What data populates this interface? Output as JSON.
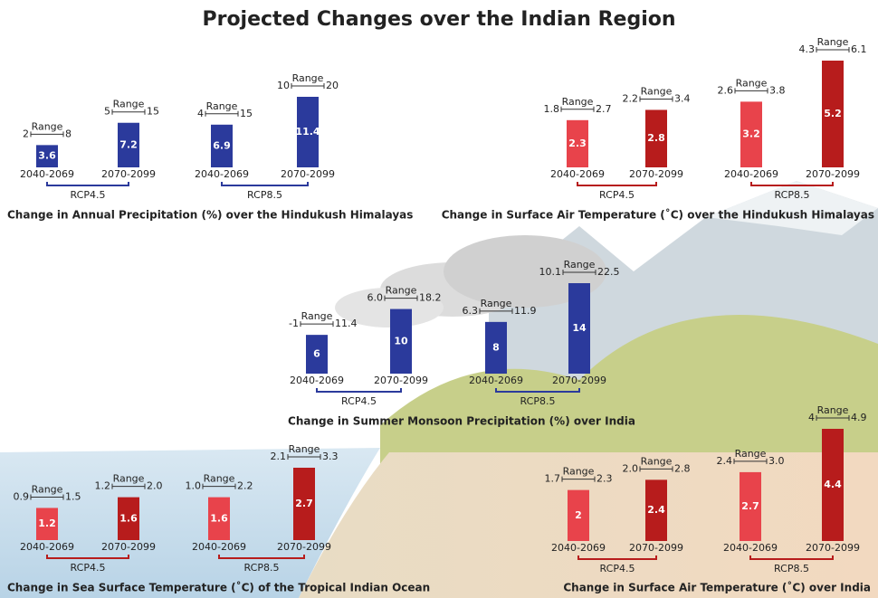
{
  "title": "Projected Changes over the Indian Region",
  "chart_data": [
    {
      "type": "bar",
      "title": "Change in Annual Precipitation (%) over the Hindukush Himalayas",
      "range_label": "Range",
      "colors": [
        "#2b3a9c",
        "#2b3a9c"
      ],
      "scenarios": [
        {
          "name": "RCP4.5",
          "bars": [
            {
              "period": "2040-2069",
              "value": 3.6,
              "low": 2,
              "high": 8
            },
            {
              "period": "2070-2099",
              "value": 7.2,
              "low": 5,
              "high": 15
            }
          ]
        },
        {
          "name": "RCP8.5",
          "bars": [
            {
              "period": "2040-2069",
              "value": 6.9,
              "low": 4,
              "high": 15
            },
            {
              "period": "2070-2099",
              "value": 11.4,
              "low": 10,
              "high": 20
            }
          ]
        }
      ]
    },
    {
      "type": "bar",
      "title": "Change in Surface Air Temperature (˚C) over the Hindukush Himalayas",
      "range_label": "Range",
      "colors": [
        "#e8434b",
        "#b71c1c"
      ],
      "scenarios": [
        {
          "name": "RCP4.5",
          "bars": [
            {
              "period": "2040-2069",
              "value": 2.3,
              "low": 1.8,
              "high": 2.7
            },
            {
              "period": "2070-2099",
              "value": 2.8,
              "low": 2.2,
              "high": 3.4
            }
          ]
        },
        {
          "name": "RCP8.5",
          "bars": [
            {
              "period": "2040-2069",
              "value": 3.2,
              "low": 2.6,
              "high": 3.8
            },
            {
              "period": "2070-2099",
              "value": 5.2,
              "low": 4.3,
              "high": 6.1
            }
          ]
        }
      ]
    },
    {
      "type": "bar",
      "title": "Change in Summer Monsoon Precipitation (%) over India",
      "range_label": "Range",
      "colors": [
        "#2b3a9c",
        "#2b3a9c"
      ],
      "scenarios": [
        {
          "name": "RCP4.5",
          "bars": [
            {
              "period": "2040-2069",
              "value": 6,
              "low": -1,
              "high": 11.4
            },
            {
              "period": "2070-2099",
              "value": 10,
              "low": {
                "value": 6,
                "label": "6.0"
              },
              "high": 18.2
            }
          ]
        },
        {
          "name": "RCP8.5",
          "bars": [
            {
              "period": "2040-2069",
              "value": 8,
              "low": 6.3,
              "high": 11.9
            },
            {
              "period": "2070-2099",
              "value": 14,
              "low": 10.1,
              "high": 22.5
            }
          ]
        }
      ]
    },
    {
      "type": "bar",
      "title": "Change in Sea Surface Temperature (˚C) of the Tropical Indian Ocean",
      "range_label": "Range",
      "colors": [
        "#e8434b",
        "#b71c1c"
      ],
      "scenarios": [
        {
          "name": "RCP4.5",
          "bars": [
            {
              "period": "2040-2069",
              "value": 1.2,
              "low": 0.9,
              "high": 1.5
            },
            {
              "period": "2070-2099",
              "value": 1.6,
              "low": 1.2,
              "high": {
                "value": 2,
                "label": "2.0"
              }
            }
          ]
        },
        {
          "name": "RCP8.5",
          "bars": [
            {
              "period": "2040-2069",
              "value": 1.6,
              "low": {
                "value": 1,
                "label": "1.0"
              },
              "high": 2.2
            },
            {
              "period": "2070-2099",
              "value": 2.7,
              "low": 2.1,
              "high": 3.3
            }
          ]
        }
      ]
    },
    {
      "type": "bar",
      "title": "Change in Surface Air Temperature (˚C) over India",
      "range_label": "Range",
      "colors": [
        "#e8434b",
        "#b71c1c"
      ],
      "scenarios": [
        {
          "name": "RCP4.5",
          "bars": [
            {
              "period": "2040-2069",
              "value": 2,
              "low": 1.7,
              "high": 2.3
            },
            {
              "period": "2070-2099",
              "value": 2.4,
              "low": {
                "value": 2,
                "label": "2.0"
              },
              "high": 2.8
            }
          ]
        },
        {
          "name": "RCP8.5",
          "bars": [
            {
              "period": "2040-2069",
              "value": 2.7,
              "low": 2.4,
              "high": {
                "value": 3,
                "label": "3.0"
              }
            },
            {
              "period": "2070-2099",
              "value": 4.4,
              "low": 4,
              "high": 4.9
            }
          ]
        }
      ]
    }
  ]
}
